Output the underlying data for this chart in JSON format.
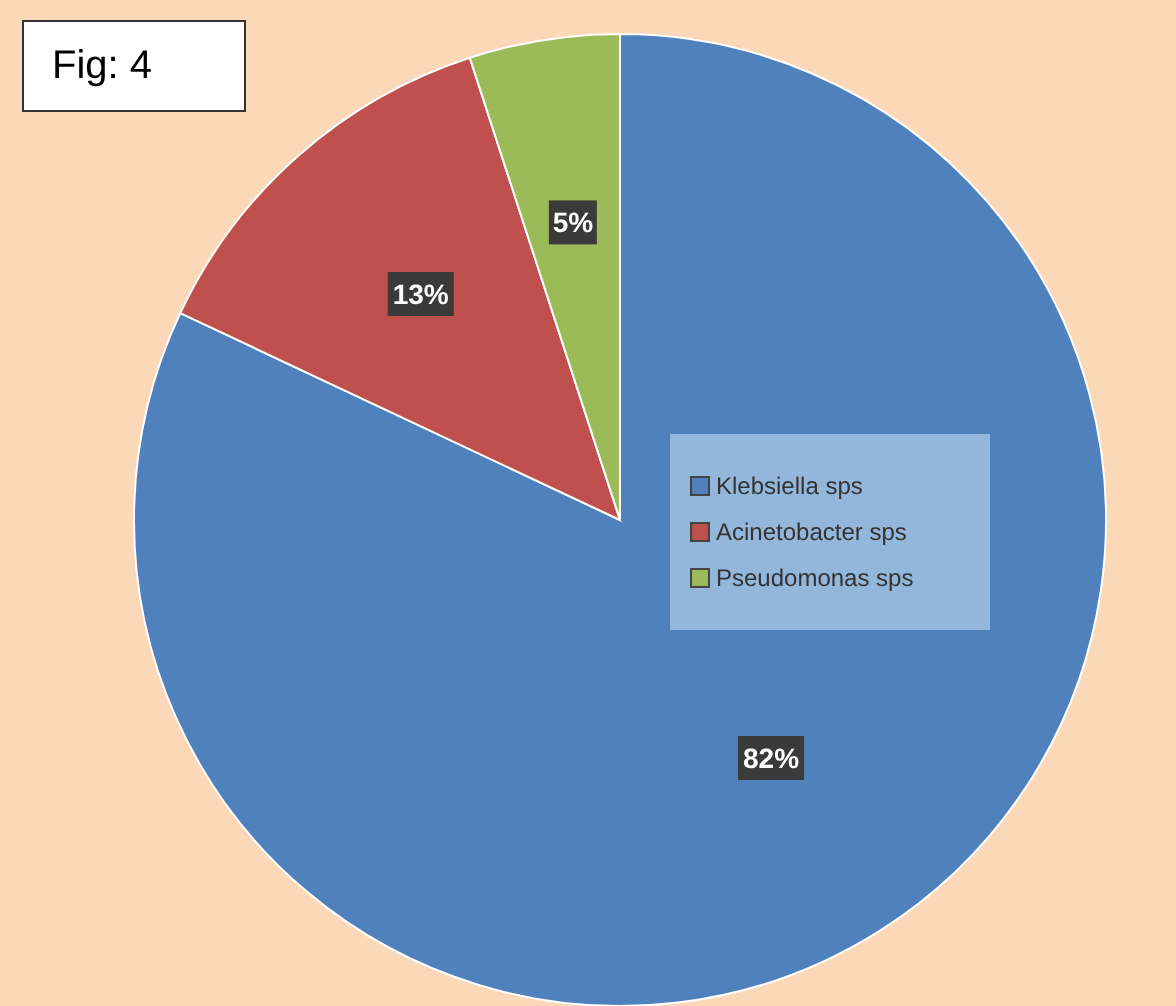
{
  "chart_data": {
    "type": "pie",
    "title": "Fig: 4",
    "categories": [
      "Klebsiella sps",
      "Acinetobacter sps",
      "Pseudomonas sps"
    ],
    "values": [
      82,
      13,
      5
    ],
    "colors": [
      "#4f81bd",
      "#c0504d",
      "#9bbb59"
    ],
    "value_labels": [
      "82%",
      "13%",
      "5%"
    ],
    "legend": "right"
  }
}
